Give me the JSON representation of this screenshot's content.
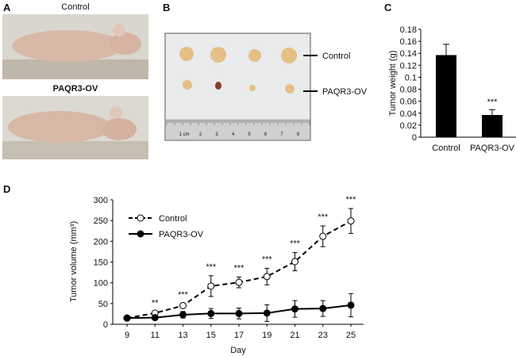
{
  "panels": {
    "a": "A",
    "b": "B",
    "c": "C",
    "d": "D"
  },
  "panel_a": {
    "top_label": "Control",
    "bottom_label": "PAQR3-OV"
  },
  "panel_b": {
    "row_labels": [
      "Control",
      "PAQR3-OV"
    ],
    "ruler_labels": [
      "1 cm",
      "2",
      "3",
      "4",
      "5",
      "6",
      "7",
      "8"
    ]
  },
  "chart_data": [
    {
      "type": "bar",
      "panel": "C",
      "categories": [
        "Control",
        "PAQR3-OV"
      ],
      "values": [
        0.137,
        0.037
      ],
      "errors": [
        0.018,
        0.009
      ],
      "annotations": [
        "",
        "***"
      ],
      "ylabel": "Tumor weight (g)",
      "ylim": [
        0,
        0.18
      ],
      "yticks": [
        "0",
        "0.02",
        "0.04",
        "0.06",
        "0.08",
        "0.1",
        "0.12",
        "0.14",
        "0.16",
        "0.18"
      ],
      "bar_color": "#000000"
    },
    {
      "type": "line",
      "panel": "D",
      "x": [
        9,
        11,
        13,
        15,
        17,
        19,
        21,
        23,
        25
      ],
      "xlabel": "Day",
      "ylabel": "Tumor volume (mm³)",
      "ylim": [
        0,
        300
      ],
      "yticks": [
        "0",
        "50",
        "100",
        "150",
        "200",
        "250",
        "300"
      ],
      "legend": "top-left",
      "series": [
        {
          "name": "Control",
          "style": "dashed, open circles",
          "values": [
            15,
            27,
            45,
            92,
            101,
            115,
            151,
            212,
            249
          ],
          "errors": [
            2,
            3,
            5,
            25,
            13,
            20,
            22,
            25,
            30
          ]
        },
        {
          "name": "PAQR3-OV",
          "style": "solid, filled circles",
          "values": [
            15,
            16,
            23,
            26,
            26,
            27,
            37,
            38,
            46
          ],
          "errors": [
            3,
            3,
            8,
            12,
            13,
            20,
            20,
            19,
            28
          ]
        }
      ],
      "annotations": [
        "",
        "**",
        "***",
        "***",
        "***",
        "***",
        "***",
        "***",
        "***"
      ]
    }
  ]
}
